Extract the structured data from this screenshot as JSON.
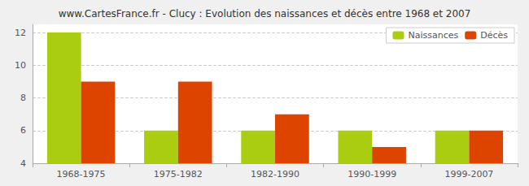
{
  "chart_data": {
    "type": "bar",
    "title": "www.CartesFrance.fr - Clucy : Evolution des naissances et décès entre 1968 et 2007",
    "categories": [
      "1968-1975",
      "1975-1982",
      "1982-1990",
      "1990-1999",
      "1999-2007"
    ],
    "series": [
      {
        "name": "Naissances",
        "color": "#aacc11",
        "values": [
          12,
          6,
          6,
          6,
          6
        ]
      },
      {
        "name": "Décès",
        "color": "#dd4400",
        "values": [
          9,
          9,
          7,
          5,
          6
        ]
      }
    ],
    "ylim": [
      4,
      12.5
    ],
    "yticks": [
      4,
      6,
      8,
      10,
      12
    ],
    "grid": true,
    "legend": "upper right"
  }
}
